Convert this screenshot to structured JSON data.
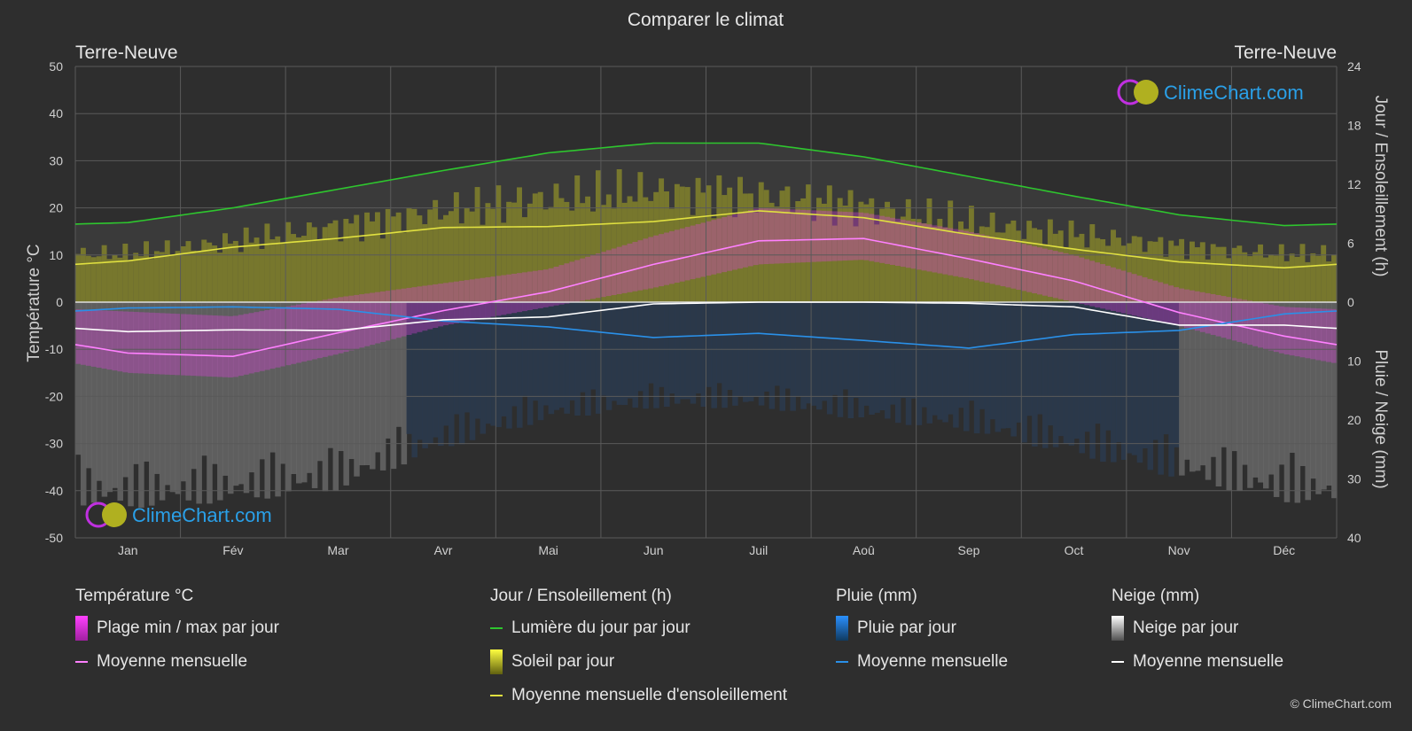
{
  "title": "Comparer le climat",
  "location_left": "Terre-Neuve",
  "location_right": "Terre-Neuve",
  "brand": "ClimeChart.com",
  "copyright": "© ClimeChart.com",
  "colors": {
    "background": "#2e2e2e",
    "daylight": "#2ec62e",
    "sunshine_avg": "#e0e040",
    "sunshine_fill": "#8c8c2a",
    "temp_range": "#e040e0",
    "temp_avg": "#ff80ff",
    "rain": "#1e78c8",
    "rain_avg": "#2a90e8",
    "snow": "#b0b0b0",
    "snow_avg": "#ffffff"
  },
  "legend": {
    "temperature": {
      "title": "Température °C",
      "items": [
        "Plage min / max par jour",
        "Moyenne mensuelle"
      ]
    },
    "sun": {
      "title": "Jour / Ensoleillement (h)",
      "items": [
        "Lumière du jour par jour",
        "Soleil par jour",
        "Moyenne mensuelle d'ensoleillement"
      ]
    },
    "rain": {
      "title": "Pluie (mm)",
      "items": [
        "Pluie par jour",
        "Moyenne mensuelle"
      ]
    },
    "snow": {
      "title": "Neige (mm)",
      "items": [
        "Neige par jour",
        "Moyenne mensuelle"
      ]
    }
  },
  "chart_data": {
    "type": "line",
    "categories": [
      "Jan",
      "Fév",
      "Mar",
      "Avr",
      "Mai",
      "Jun",
      "Juil",
      "Aoû",
      "Sep",
      "Oct",
      "Nov",
      "Déc"
    ],
    "y_left": {
      "label": "Température °C",
      "range": [
        -50,
        50
      ],
      "ticks": [
        50,
        40,
        30,
        20,
        10,
        0,
        -10,
        -20,
        -30,
        -40,
        -50
      ]
    },
    "y_right_top": {
      "label": "Jour / Ensoleillement (h)",
      "range": [
        0,
        24
      ],
      "ticks": [
        24,
        18,
        12,
        6,
        0
      ]
    },
    "y_right_bottom": {
      "label": "Pluie / Neige (mm)",
      "range": [
        0,
        40
      ],
      "ticks": [
        0,
        10,
        20,
        30,
        40
      ]
    },
    "grid": true,
    "series": [
      {
        "name": "Lumière du jour par jour",
        "axis": "hours",
        "values": [
          8.1,
          9.6,
          11.5,
          13.4,
          15.2,
          16.2,
          16.2,
          14.8,
          12.8,
          10.8,
          8.9,
          7.8
        ]
      },
      {
        "name": "Moyenne mensuelle d'ensoleillement",
        "axis": "hours",
        "values": [
          4.2,
          5.6,
          6.5,
          7.6,
          7.7,
          8.2,
          9.3,
          8.6,
          6.9,
          5.4,
          4.1,
          3.5
        ]
      },
      {
        "name": "Plage min / max par jour",
        "axis": "temperature",
        "min": [
          -15,
          -16,
          -11,
          -5,
          -1,
          3,
          8,
          9,
          5,
          0,
          -5,
          -11
        ],
        "max": [
          -2,
          -3,
          1,
          4,
          7,
          14,
          20,
          19,
          15,
          10,
          3,
          -1
        ]
      },
      {
        "name": "Moyenne mensuelle (température)",
        "axis": "temperature",
        "values": [
          -10.8,
          -11.5,
          -6.5,
          -1.8,
          2.2,
          8.0,
          13.0,
          13.5,
          9.2,
          4.5,
          -2.2,
          -7.2
        ]
      },
      {
        "name": "Moyenne mensuelle (pluie)",
        "axis": "precip",
        "values": [
          1.0,
          0.8,
          1.2,
          3.2,
          4.2,
          6.0,
          5.3,
          6.5,
          7.8,
          5.5,
          4.8,
          2.0
        ]
      },
      {
        "name": "Moyenne mensuelle (neige)",
        "axis": "precip",
        "values": [
          5.0,
          4.7,
          4.8,
          3.0,
          2.5,
          0.3,
          0.0,
          0.0,
          0.2,
          0.8,
          3.9,
          3.9
        ]
      }
    ],
    "daily_sunshine_mean": [
      5.5,
      7.0,
      9.0,
      11.0,
      12.5,
      13.5,
      13.0,
      11.5,
      9.5,
      8.0,
      6.5,
      5.5
    ],
    "daily_precip_mean": [
      35,
      34,
      32,
      25,
      20,
      18,
      18,
      20,
      22,
      26,
      30,
      34
    ]
  }
}
